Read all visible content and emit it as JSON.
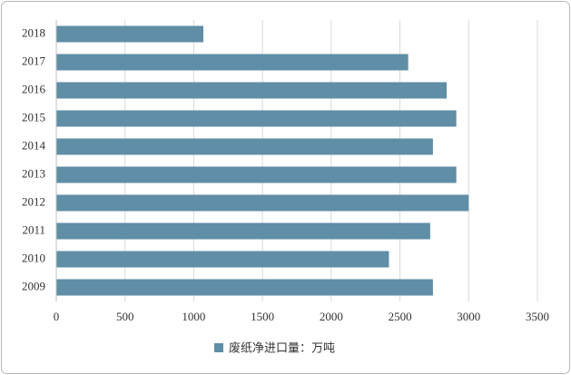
{
  "chart_data": {
    "type": "bar",
    "orientation": "horizontal",
    "categories": [
      "2018",
      "2017",
      "2016",
      "2015",
      "2014",
      "2013",
      "2012",
      "2011",
      "2010",
      "2009"
    ],
    "series": [
      {
        "name": "废纸净进口量：万吨",
        "color": "#5f8ea6",
        "values": [
          1070,
          2560,
          2840,
          2910,
          2740,
          2910,
          3000,
          2720,
          2420,
          2740
        ]
      }
    ],
    "xlim": [
      0,
      3500
    ],
    "xticks": [
      0,
      500,
      1000,
      1500,
      2000,
      2500,
      3000,
      3500
    ],
    "grid": true,
    "legend": "bottom"
  }
}
